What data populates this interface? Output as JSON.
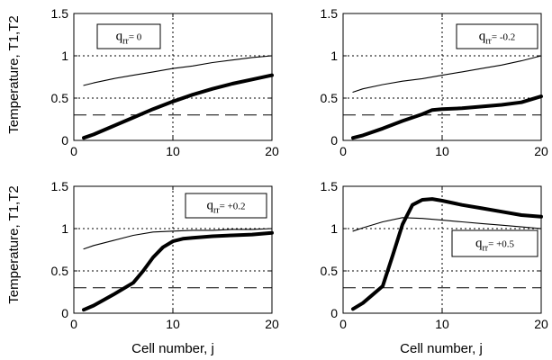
{
  "figure": {
    "ylabel": "Temperature, T1,T2",
    "xlabel": "Cell number, j"
  },
  "chart_data": [
    {
      "type": "line",
      "annotation": {
        "symbol": "q",
        "subscript": "rr",
        "value": "= 0"
      },
      "xlim": [
        0,
        20
      ],
      "ylim": [
        0,
        1.5
      ],
      "xticks": [
        "0",
        "10",
        "20"
      ],
      "yticks": [
        "0",
        "0.5",
        "1",
        "1.5"
      ],
      "grid": "dotted",
      "reference_lines": [
        {
          "y": 0.3,
          "style": "dashed"
        },
        {
          "x": 10,
          "style": "dotted"
        }
      ],
      "series": [
        {
          "style": "thin",
          "x": [
            1,
            2,
            4,
            6,
            8,
            10,
            12,
            14,
            16,
            18,
            20
          ],
          "y": [
            0.65,
            0.68,
            0.73,
            0.77,
            0.81,
            0.85,
            0.88,
            0.92,
            0.95,
            0.98,
            1.0
          ]
        },
        {
          "style": "thick",
          "x": [
            1,
            2,
            4,
            6,
            8,
            10,
            12,
            14,
            16,
            18,
            20
          ],
          "y": [
            0.03,
            0.07,
            0.17,
            0.27,
            0.37,
            0.46,
            0.54,
            0.61,
            0.67,
            0.72,
            0.77
          ]
        }
      ]
    },
    {
      "type": "line",
      "annotation": {
        "symbol": "q",
        "subscript": "rr",
        "value": "= -0.2"
      },
      "xlim": [
        0,
        20
      ],
      "ylim": [
        0,
        1.5
      ],
      "xticks": [
        "0",
        "10",
        "20"
      ],
      "yticks": [
        "0",
        "0.5",
        "1",
        "1.5"
      ],
      "grid": "dotted",
      "reference_lines": [
        {
          "y": 0.3,
          "style": "dashed"
        },
        {
          "x": 10,
          "style": "dotted"
        }
      ],
      "series": [
        {
          "style": "thin",
          "x": [
            1,
            2,
            4,
            6,
            8,
            10,
            12,
            14,
            16,
            18,
            20
          ],
          "y": [
            0.57,
            0.61,
            0.66,
            0.7,
            0.73,
            0.77,
            0.81,
            0.85,
            0.89,
            0.94,
            1.0
          ]
        },
        {
          "style": "thick",
          "x": [
            1,
            2,
            4,
            6,
            8,
            9,
            10,
            12,
            14,
            16,
            18,
            20
          ],
          "y": [
            0.03,
            0.06,
            0.14,
            0.23,
            0.31,
            0.36,
            0.37,
            0.38,
            0.4,
            0.42,
            0.45,
            0.52
          ]
        }
      ]
    },
    {
      "type": "line",
      "annotation": {
        "symbol": "q",
        "subscript": "rr",
        "value": "= +0.2"
      },
      "xlim": [
        0,
        20
      ],
      "ylim": [
        0,
        1.5
      ],
      "xticks": [
        "0",
        "10",
        "20"
      ],
      "yticks": [
        "0",
        "0.5",
        "1",
        "1.5"
      ],
      "grid": "dotted",
      "reference_lines": [
        {
          "y": 0.3,
          "style": "dashed"
        },
        {
          "x": 10,
          "style": "dotted"
        }
      ],
      "series": [
        {
          "style": "thin",
          "x": [
            1,
            2,
            4,
            6,
            8,
            10,
            12,
            14,
            16,
            18,
            20
          ],
          "y": [
            0.76,
            0.8,
            0.86,
            0.92,
            0.96,
            0.97,
            0.98,
            0.98,
            0.99,
            0.99,
            1.0
          ]
        },
        {
          "style": "thick",
          "x": [
            1,
            2,
            4,
            6,
            7,
            8,
            9,
            10,
            11,
            12,
            14,
            16,
            18,
            20
          ],
          "y": [
            0.04,
            0.09,
            0.22,
            0.36,
            0.5,
            0.66,
            0.78,
            0.85,
            0.88,
            0.89,
            0.91,
            0.92,
            0.93,
            0.95
          ]
        }
      ]
    },
    {
      "type": "line",
      "annotation": {
        "symbol": "q",
        "subscript": "rr",
        "value": "= +0.5"
      },
      "xlim": [
        0,
        20
      ],
      "ylim": [
        0,
        1.5
      ],
      "xticks": [
        "0",
        "10",
        "20"
      ],
      "yticks": [
        "0",
        "0.5",
        "1",
        "1.5"
      ],
      "grid": "dotted",
      "reference_lines": [
        {
          "y": 0.3,
          "style": "dashed"
        },
        {
          "x": 10,
          "style": "dotted"
        }
      ],
      "series": [
        {
          "style": "thin",
          "x": [
            1,
            2,
            4,
            6,
            8,
            10,
            12,
            14,
            16,
            18,
            20
          ],
          "y": [
            0.97,
            1.01,
            1.08,
            1.13,
            1.12,
            1.1,
            1.08,
            1.06,
            1.04,
            1.02,
            1.0
          ]
        },
        {
          "style": "thick",
          "x": [
            1,
            2,
            3,
            4,
            5,
            6,
            7,
            8,
            9,
            10,
            12,
            14,
            16,
            18,
            20
          ],
          "y": [
            0.05,
            0.12,
            0.22,
            0.32,
            0.68,
            1.05,
            1.28,
            1.34,
            1.35,
            1.33,
            1.28,
            1.24,
            1.2,
            1.16,
            1.14
          ]
        }
      ]
    }
  ]
}
